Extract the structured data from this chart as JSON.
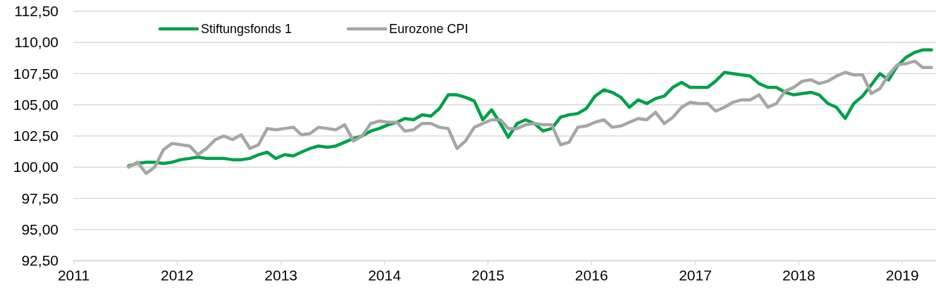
{
  "chart_data": {
    "type": "line",
    "x": [
      "2011-07-15",
      "2011-08-15",
      "2011-09-15",
      "2011-10-15",
      "2011-11-15",
      "2011-12-15",
      "2012-01-15",
      "2012-02-15",
      "2012-03-15",
      "2012-04-15",
      "2012-05-15",
      "2012-06-15",
      "2012-07-15",
      "2012-08-15",
      "2012-09-15",
      "2012-10-15",
      "2012-11-15",
      "2012-12-15",
      "2013-01-15",
      "2013-02-15",
      "2013-03-15",
      "2013-04-15",
      "2013-05-15",
      "2013-06-15",
      "2013-07-15",
      "2013-08-15",
      "2013-09-15",
      "2013-10-15",
      "2013-11-15",
      "2013-12-15",
      "2014-01-15",
      "2014-02-15",
      "2014-03-15",
      "2014-04-15",
      "2014-05-15",
      "2014-06-15",
      "2014-07-15",
      "2014-08-15",
      "2014-09-15",
      "2014-10-15",
      "2014-11-15",
      "2014-12-15",
      "2015-01-15",
      "2015-02-15",
      "2015-03-15",
      "2015-04-15",
      "2015-05-15",
      "2015-06-15",
      "2015-07-15",
      "2015-08-15",
      "2015-09-15",
      "2015-10-15",
      "2015-11-15",
      "2015-12-15",
      "2016-01-15",
      "2016-02-15",
      "2016-03-15",
      "2016-04-15",
      "2016-05-15",
      "2016-06-15",
      "2016-07-15",
      "2016-08-15",
      "2016-09-15",
      "2016-10-15",
      "2016-11-15",
      "2016-12-15",
      "2017-01-15",
      "2017-02-15",
      "2017-03-15",
      "2017-04-15",
      "2017-05-15",
      "2017-06-15",
      "2017-07-15",
      "2017-08-15",
      "2017-09-15",
      "2017-10-15",
      "2017-11-15",
      "2017-12-15",
      "2018-01-15",
      "2018-02-15",
      "2018-03-15",
      "2018-04-15",
      "2018-05-15",
      "2018-06-15",
      "2018-07-15",
      "2018-08-15",
      "2018-09-15",
      "2018-10-15",
      "2018-11-15",
      "2018-12-15",
      "2019-01-15",
      "2019-02-15",
      "2019-03-15",
      "2019-04-15"
    ],
    "series": [
      {
        "name": "Stiftungsfonds 1",
        "color": "#00a04a",
        "values": [
          100.1,
          100.3,
          100.4,
          100.4,
          100.3,
          100.4,
          100.6,
          100.7,
          100.8,
          100.7,
          100.7,
          100.7,
          100.6,
          100.6,
          100.7,
          101.0,
          101.2,
          100.7,
          101.0,
          100.9,
          101.2,
          101.5,
          101.7,
          101.6,
          101.7,
          102.0,
          102.3,
          102.5,
          102.9,
          103.1,
          103.4,
          103.6,
          103.9,
          103.8,
          104.2,
          104.1,
          104.7,
          105.8,
          105.8,
          105.6,
          105.3,
          103.8,
          104.6,
          103.5,
          102.4,
          103.5,
          103.8,
          103.5,
          102.9,
          103.1,
          104.0,
          104.2,
          104.3,
          104.7,
          105.7,
          106.2,
          106.0,
          105.6,
          104.8,
          105.4,
          105.1,
          105.5,
          105.7,
          106.4,
          106.8,
          106.4,
          106.4,
          106.4,
          106.9,
          107.6,
          107.5,
          107.4,
          107.3,
          106.7,
          106.4,
          106.4,
          106.0,
          105.8,
          105.9,
          106.0,
          105.8,
          105.1,
          104.8,
          103.9,
          105.1,
          105.7,
          106.6,
          107.5,
          107.0,
          108.1,
          108.8,
          109.2,
          109.4,
          109.4
        ]
      },
      {
        "name": "Eurozone CPI",
        "color": "#a6a6a6",
        "values": [
          100.0,
          100.4,
          99.5,
          100.0,
          101.4,
          101.9,
          101.8,
          101.7,
          101.0,
          101.5,
          102.2,
          102.5,
          102.2,
          102.6,
          101.5,
          101.8,
          103.1,
          103.0,
          103.1,
          103.2,
          102.6,
          102.7,
          103.2,
          103.1,
          103.0,
          103.4,
          102.1,
          102.5,
          103.5,
          103.7,
          103.6,
          103.6,
          102.9,
          103.0,
          103.5,
          103.5,
          103.2,
          103.1,
          101.5,
          102.1,
          103.2,
          103.5,
          103.8,
          103.8,
          103.1,
          103.1,
          103.4,
          103.5,
          103.4,
          103.4,
          101.8,
          102.0,
          103.2,
          103.3,
          103.6,
          103.8,
          103.2,
          103.3,
          103.6,
          103.9,
          103.8,
          104.4,
          103.5,
          104.0,
          104.8,
          105.2,
          105.1,
          105.1,
          104.5,
          104.8,
          105.2,
          105.4,
          105.4,
          105.8,
          104.8,
          105.1,
          106.1,
          106.4,
          106.9,
          107.0,
          106.7,
          106.9,
          107.3,
          107.6,
          107.4,
          107.4,
          105.9,
          106.3,
          107.4,
          108.2,
          108.3,
          108.5,
          108.0,
          108.0
        ]
      }
    ],
    "xlim": [
      "2011",
      "2019-05"
    ],
    "xticks": [
      "2011",
      "2012",
      "2013",
      "2014",
      "2015",
      "2016",
      "2017",
      "2018",
      "2019"
    ],
    "ylim": [
      92.5,
      112.5
    ],
    "yticks": [
      {
        "value": 92.5,
        "label": "92,50"
      },
      {
        "value": 95,
        "label": "95,00"
      },
      {
        "value": 97.5,
        "label": "97,50"
      },
      {
        "value": 100,
        "label": "100,00"
      },
      {
        "value": 102.5,
        "label": "102,50"
      },
      {
        "value": 105,
        "label": "105,00"
      },
      {
        "value": 107.5,
        "label": "107,50"
      },
      {
        "value": 110,
        "label": "110,00"
      },
      {
        "value": 112.5,
        "label": "112,50"
      }
    ],
    "grid": "y",
    "legend": "top left"
  }
}
